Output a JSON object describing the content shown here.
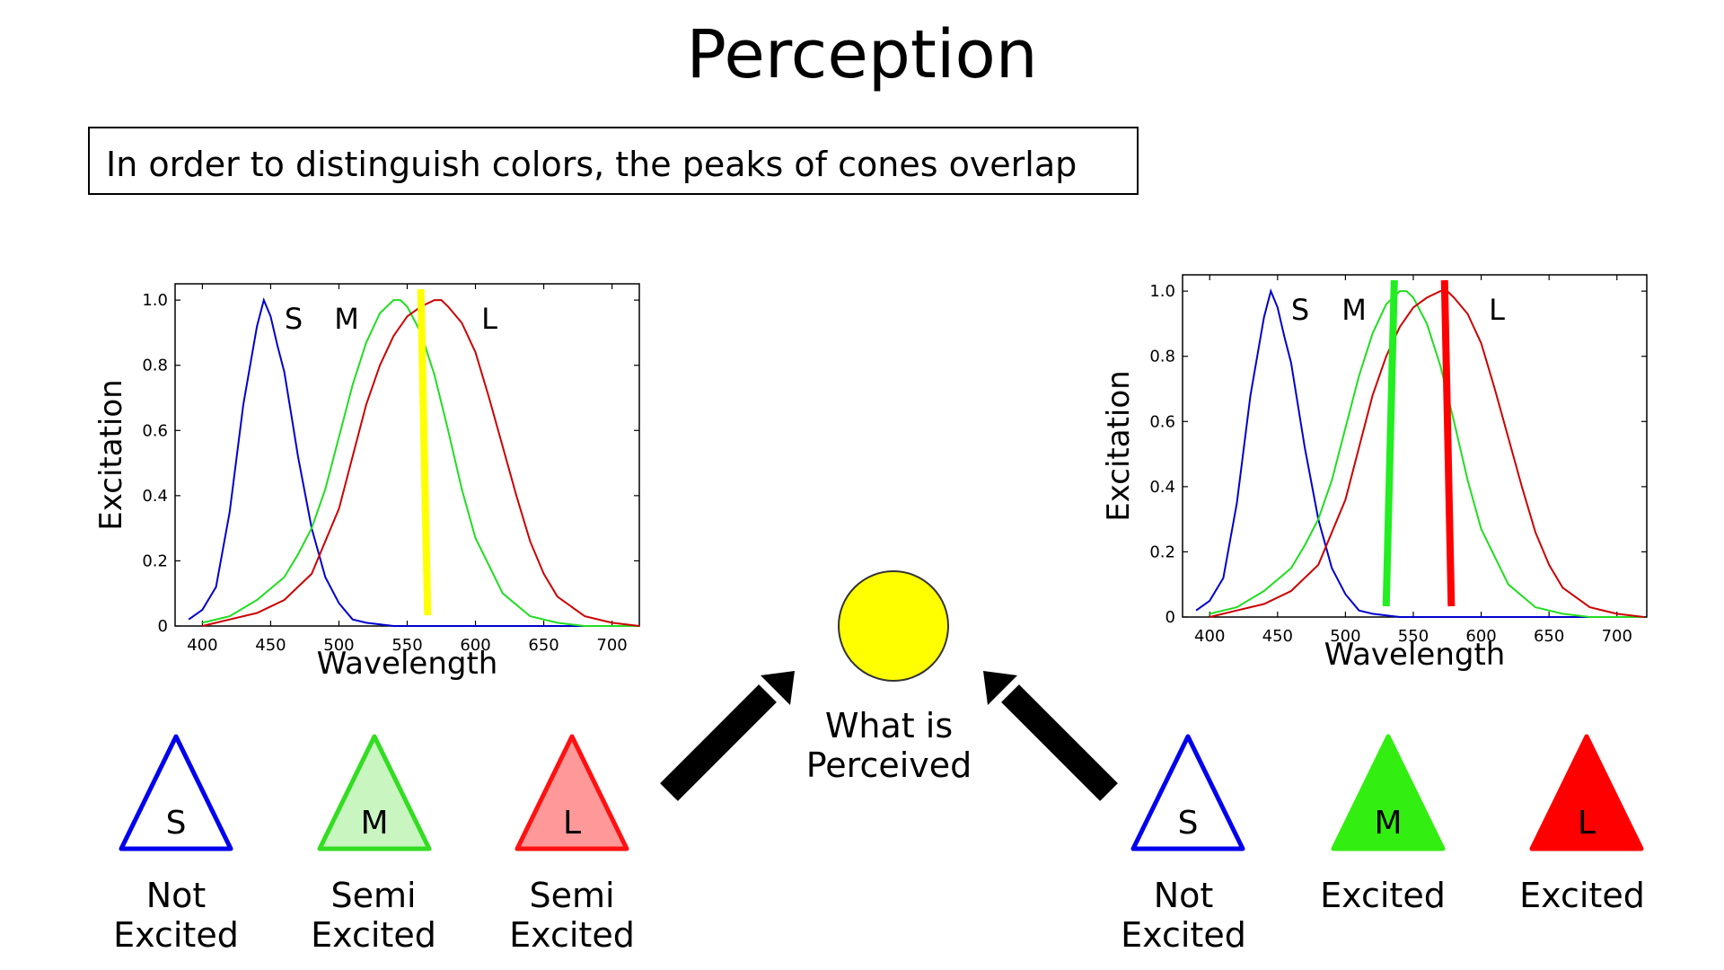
{
  "title": "Perception",
  "subtitle": "In order to distinguish colors, the peaks of cones overlap",
  "perceived": {
    "label_line1": "What is",
    "label_line2": "Perceived",
    "color": "#ffff00"
  },
  "colors": {
    "s_cone": "#0000cc",
    "m_cone": "#22dd22",
    "l_cone": "#cc0000",
    "yellow_stimulus": "#ffff00",
    "green_stimulus": "#22ee22",
    "red_stimulus": "#ff0000"
  },
  "chart_data": [
    {
      "type": "line",
      "xlabel": "Wavelength",
      "ylabel": "Excitation",
      "xlim": [
        380,
        720
      ],
      "ylim": [
        0,
        1.05
      ],
      "xticks": [
        "400",
        "450",
        "500",
        "550",
        "600",
        "650",
        "700"
      ],
      "yticks": [
        "0",
        "0.2",
        "0.4",
        "0.6",
        "0.8",
        "1.0"
      ],
      "series": [
        {
          "name": "S",
          "x": [
            390,
            400,
            410,
            420,
            430,
            440,
            445,
            450,
            455,
            460,
            465,
            470,
            480,
            490,
            500,
            510,
            520,
            540,
            560,
            720
          ],
          "values": [
            0.02,
            0.05,
            0.12,
            0.35,
            0.68,
            0.92,
            1.0,
            0.95,
            0.86,
            0.78,
            0.65,
            0.52,
            0.3,
            0.15,
            0.07,
            0.02,
            0.01,
            0.0,
            0.0,
            0.0
          ]
        },
        {
          "name": "M",
          "x": [
            400,
            420,
            440,
            460,
            470,
            480,
            490,
            500,
            510,
            520,
            530,
            540,
            545,
            550,
            560,
            570,
            580,
            590,
            600,
            620,
            640,
            660,
            680,
            700,
            720
          ],
          "values": [
            0.01,
            0.03,
            0.08,
            0.15,
            0.22,
            0.3,
            0.42,
            0.58,
            0.74,
            0.87,
            0.96,
            1.0,
            1.0,
            0.98,
            0.9,
            0.77,
            0.6,
            0.42,
            0.27,
            0.1,
            0.03,
            0.01,
            0.0,
            0.0,
            0.0
          ]
        },
        {
          "name": "L",
          "x": [
            400,
            420,
            440,
            460,
            480,
            500,
            510,
            520,
            530,
            540,
            550,
            560,
            570,
            575,
            580,
            590,
            600,
            610,
            620,
            630,
            640,
            650,
            660,
            680,
            700,
            720
          ],
          "values": [
            0.0,
            0.02,
            0.04,
            0.08,
            0.16,
            0.36,
            0.52,
            0.68,
            0.8,
            0.89,
            0.95,
            0.98,
            1.0,
            1.0,
            0.98,
            0.93,
            0.84,
            0.7,
            0.55,
            0.4,
            0.26,
            0.16,
            0.09,
            0.03,
            0.01,
            0.0
          ]
        }
      ],
      "stimulus_lines": [
        {
          "color": "#ffff00",
          "x_top": 560,
          "x_bottom": 565
        }
      ]
    },
    {
      "type": "line",
      "xlabel": "Wavelength",
      "ylabel": "Excitation",
      "xlim": [
        380,
        722
      ],
      "ylim": [
        0,
        1.05
      ],
      "xticks": [
        "400",
        "450",
        "500",
        "550",
        "600",
        "650",
        "700"
      ],
      "yticks": [
        "0",
        "0.2",
        "0.4",
        "0.6",
        "0.8",
        "1.0"
      ],
      "series": [
        {
          "name": "S",
          "x": [
            390,
            400,
            410,
            420,
            430,
            440,
            445,
            450,
            455,
            460,
            465,
            470,
            480,
            490,
            500,
            510,
            520,
            540,
            560,
            720
          ],
          "values": [
            0.02,
            0.05,
            0.12,
            0.35,
            0.68,
            0.92,
            1.0,
            0.95,
            0.86,
            0.78,
            0.65,
            0.52,
            0.3,
            0.15,
            0.07,
            0.02,
            0.01,
            0.0,
            0.0,
            0.0
          ]
        },
        {
          "name": "M",
          "x": [
            400,
            420,
            440,
            460,
            470,
            480,
            490,
            500,
            510,
            520,
            530,
            540,
            545,
            550,
            560,
            570,
            580,
            590,
            600,
            620,
            640,
            660,
            680,
            700,
            720
          ],
          "values": [
            0.01,
            0.03,
            0.08,
            0.15,
            0.22,
            0.3,
            0.42,
            0.58,
            0.74,
            0.87,
            0.96,
            1.0,
            1.0,
            0.98,
            0.9,
            0.77,
            0.6,
            0.42,
            0.27,
            0.1,
            0.03,
            0.01,
            0.0,
            0.0,
            0.0
          ]
        },
        {
          "name": "L",
          "x": [
            400,
            420,
            440,
            460,
            480,
            500,
            510,
            520,
            530,
            540,
            550,
            560,
            570,
            575,
            580,
            590,
            600,
            610,
            620,
            630,
            640,
            650,
            660,
            680,
            700,
            720
          ],
          "values": [
            0.0,
            0.02,
            0.04,
            0.08,
            0.16,
            0.36,
            0.52,
            0.68,
            0.8,
            0.89,
            0.95,
            0.98,
            1.0,
            1.0,
            0.98,
            0.93,
            0.84,
            0.7,
            0.55,
            0.4,
            0.26,
            0.16,
            0.09,
            0.03,
            0.01,
            0.0
          ]
        }
      ],
      "stimulus_lines": [
        {
          "color": "#22ee22",
          "x_top": 536,
          "x_bottom": 530
        },
        {
          "color": "#ff0000",
          "x_top": 573,
          "x_bottom": 578
        }
      ]
    }
  ],
  "cones_left": [
    {
      "letter": "S",
      "state_line1": "Not",
      "state_line2": "Excited",
      "stroke": "#0000ee",
      "fill": "#ffffff"
    },
    {
      "letter": "M",
      "state_line1": "Semi",
      "state_line2": "Excited",
      "stroke": "#33dd22",
      "fill": "#c8f5c0"
    },
    {
      "letter": "L",
      "state_line1": "Semi",
      "state_line2": "Excited",
      "stroke": "#ff1111",
      "fill": "#ff9999"
    }
  ],
  "cones_right": [
    {
      "letter": "S",
      "state_line1": "Not",
      "state_line2": "Excited",
      "stroke": "#0000ee",
      "fill": "#ffffff"
    },
    {
      "letter": "M",
      "state_line1": "",
      "state_line2": "Excited",
      "stroke": "#33ee11",
      "fill": "#33ee11"
    },
    {
      "letter": "L",
      "state_line1": "",
      "state_line2": "Excited",
      "stroke": "#ff0000",
      "fill": "#ff0000"
    }
  ]
}
